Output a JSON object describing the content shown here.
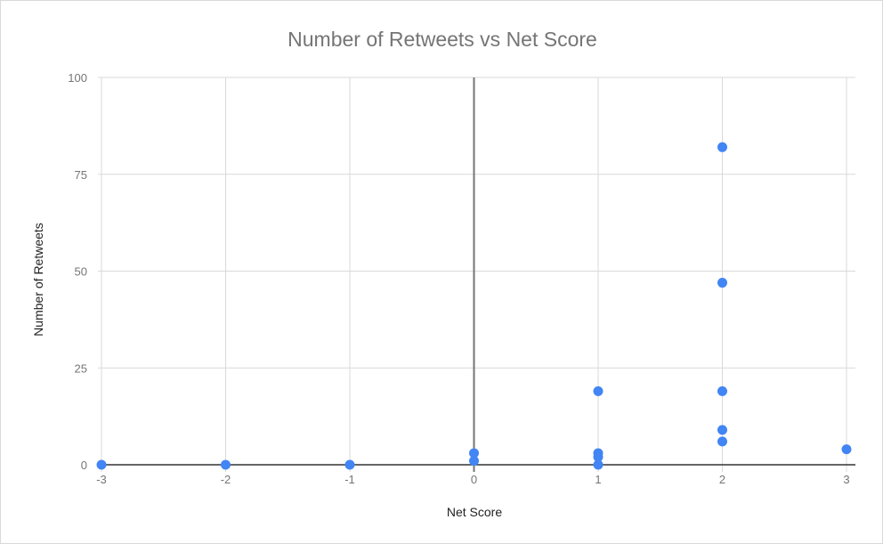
{
  "chart_data": {
    "type": "scatter",
    "title": "Number of Retweets vs Net Score",
    "xlabel": "Net Score",
    "ylabel": "Number of Retweets",
    "xlim": [
      -3,
      3
    ],
    "ylim": [
      0,
      100
    ],
    "x_ticks": [
      "-3",
      "-2",
      "-1",
      "0",
      "1",
      "2",
      "3"
    ],
    "y_ticks": [
      "0",
      "25",
      "50",
      "75",
      "100"
    ],
    "grid": true,
    "legend": "none",
    "colors": {
      "point": "#4285f4",
      "grid": "#d9d9d9",
      "zero_line": "#757575",
      "baseline": "#333333",
      "tick_label": "#757575"
    },
    "points": [
      {
        "x": -3,
        "y": 0
      },
      {
        "x": -2,
        "y": 0
      },
      {
        "x": -1,
        "y": 0
      },
      {
        "x": 0,
        "y": 3
      },
      {
        "x": 0,
        "y": 1
      },
      {
        "x": 1,
        "y": 19
      },
      {
        "x": 1,
        "y": 3
      },
      {
        "x": 1,
        "y": 2
      },
      {
        "x": 1,
        "y": 0
      },
      {
        "x": 2,
        "y": 82
      },
      {
        "x": 2,
        "y": 47
      },
      {
        "x": 2,
        "y": 19
      },
      {
        "x": 2,
        "y": 9
      },
      {
        "x": 2,
        "y": 6
      },
      {
        "x": 3,
        "y": 4
      }
    ]
  }
}
